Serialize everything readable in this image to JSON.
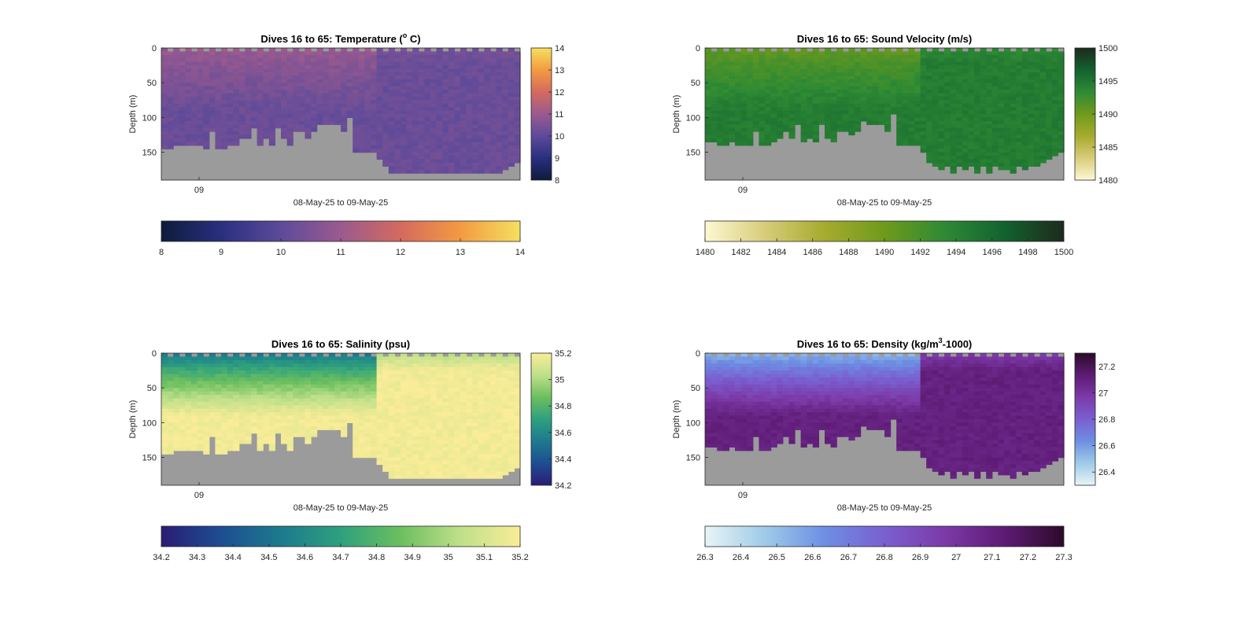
{
  "chart_data": [
    {
      "type": "heatmap",
      "id": "temperature",
      "title": "Dives 16 to 65: Temperature (°C)",
      "title_parts": {
        "pre": "Dives 16 to 65: Temperature (",
        "sup": "o",
        "post": " C)"
      },
      "ylabel": "Depth (m)",
      "xlabel": "08-May-25 to 09-May-25",
      "xtick_labels": [
        "09"
      ],
      "ytick_labels": [
        "0",
        "50",
        "100",
        "150"
      ],
      "ylim": [
        0,
        190
      ],
      "clim": [
        8,
        14
      ],
      "colorbar_side_ticks": [
        "8",
        "9",
        "10",
        "11",
        "12",
        "13",
        "14"
      ],
      "colorbar_bottom_ticks": [
        "8",
        "9",
        "10",
        "11",
        "12",
        "13",
        "14"
      ],
      "colormap": [
        "#0c1c3a",
        "#2a2f7f",
        "#5d4a9a",
        "#9a5a8f",
        "#d46a5e",
        "#f39a42",
        "#f5e060"
      ],
      "approx_surface_value": 11,
      "approx_deep_value": 10.2,
      "no_data_color": "#9b9b9b"
    },
    {
      "type": "heatmap",
      "id": "sound-velocity",
      "title": "Dives 16 to 65: Sound Velocity (m/s)",
      "ylabel": "Depth (m)",
      "xlabel": "08-May-25 to 09-May-25",
      "xtick_labels": [
        "09"
      ],
      "ytick_labels": [
        "0",
        "50",
        "100",
        "150"
      ],
      "ylim": [
        0,
        190
      ],
      "clim": [
        1480,
        1500
      ],
      "colorbar_side_ticks": [
        "1480",
        "1485",
        "1490",
        "1495",
        "1500"
      ],
      "colorbar_bottom_ticks": [
        "1480",
        "1482",
        "1484",
        "1486",
        "1488",
        "1490",
        "1492",
        "1494",
        "1496",
        "1498",
        "1500"
      ],
      "colormap": [
        "#fdf8d2",
        "#d8cc7a",
        "#a6ab2e",
        "#6f9a1c",
        "#2e8a34",
        "#12622f",
        "#1d2a1c"
      ],
      "approx_surface_value": 1490.5,
      "approx_deep_value": 1494.5,
      "no_data_color": "#9b9b9b"
    },
    {
      "type": "heatmap",
      "id": "salinity",
      "title": "Dives 16 to 65: Salinity (psu)",
      "ylabel": "Depth (m)",
      "xlabel": "08-May-25 to 09-May-25",
      "xtick_labels": [
        "09"
      ],
      "ytick_labels": [
        "0",
        "50",
        "100",
        "150"
      ],
      "ylim": [
        0,
        190
      ],
      "clim": [
        34.2,
        35.2
      ],
      "colorbar_side_ticks": [
        "34.2",
        "34.4",
        "34.6",
        "34.8",
        "35",
        "35.2"
      ],
      "colorbar_bottom_ticks": [
        "34.2",
        "34.3",
        "34.4",
        "34.5",
        "34.6",
        "34.7",
        "34.8",
        "34.9",
        "35",
        "35.1",
        "35.2"
      ],
      "colormap": [
        "#2a1c74",
        "#1d4e92",
        "#1d7a8e",
        "#2ea07e",
        "#6cbf5f",
        "#bfe08a",
        "#faec98"
      ],
      "approx_surface_value": 34.5,
      "approx_deep_value": 35.18,
      "no_data_color": "#9b9b9b"
    },
    {
      "type": "heatmap",
      "id": "density",
      "title": "Dives 16 to 65: Density (kg/m³-1000)",
      "title_parts": {
        "pre": "Dives 16 to 65: Density (kg/m",
        "sup": "3",
        "post": "-1000)"
      },
      "ylabel": "Depth (m)",
      "xlabel": "08-May-25 to 09-May-25",
      "xtick_labels": [
        "09"
      ],
      "ytick_labels": [
        "0",
        "50",
        "100",
        "150"
      ],
      "ylim": [
        0,
        190
      ],
      "clim": [
        26.3,
        27.3
      ],
      "colorbar_side_ticks": [
        "26.4",
        "26.6",
        "26.8",
        "27",
        "27.2"
      ],
      "colorbar_bottom_ticks": [
        "26.3",
        "26.4",
        "26.5",
        "26.6",
        "26.7",
        "26.8",
        "26.9",
        "27",
        "27.1",
        "27.2",
        "27.3"
      ],
      "colormap": [
        "#e8f4f6",
        "#9fcbe8",
        "#6d8fe3",
        "#7a5fd0",
        "#7c3aa8",
        "#5e1b74",
        "#2c0a2a"
      ],
      "approx_surface_value": 26.5,
      "approx_deep_value": 27.1,
      "no_data_color": "#9b9b9b"
    }
  ]
}
